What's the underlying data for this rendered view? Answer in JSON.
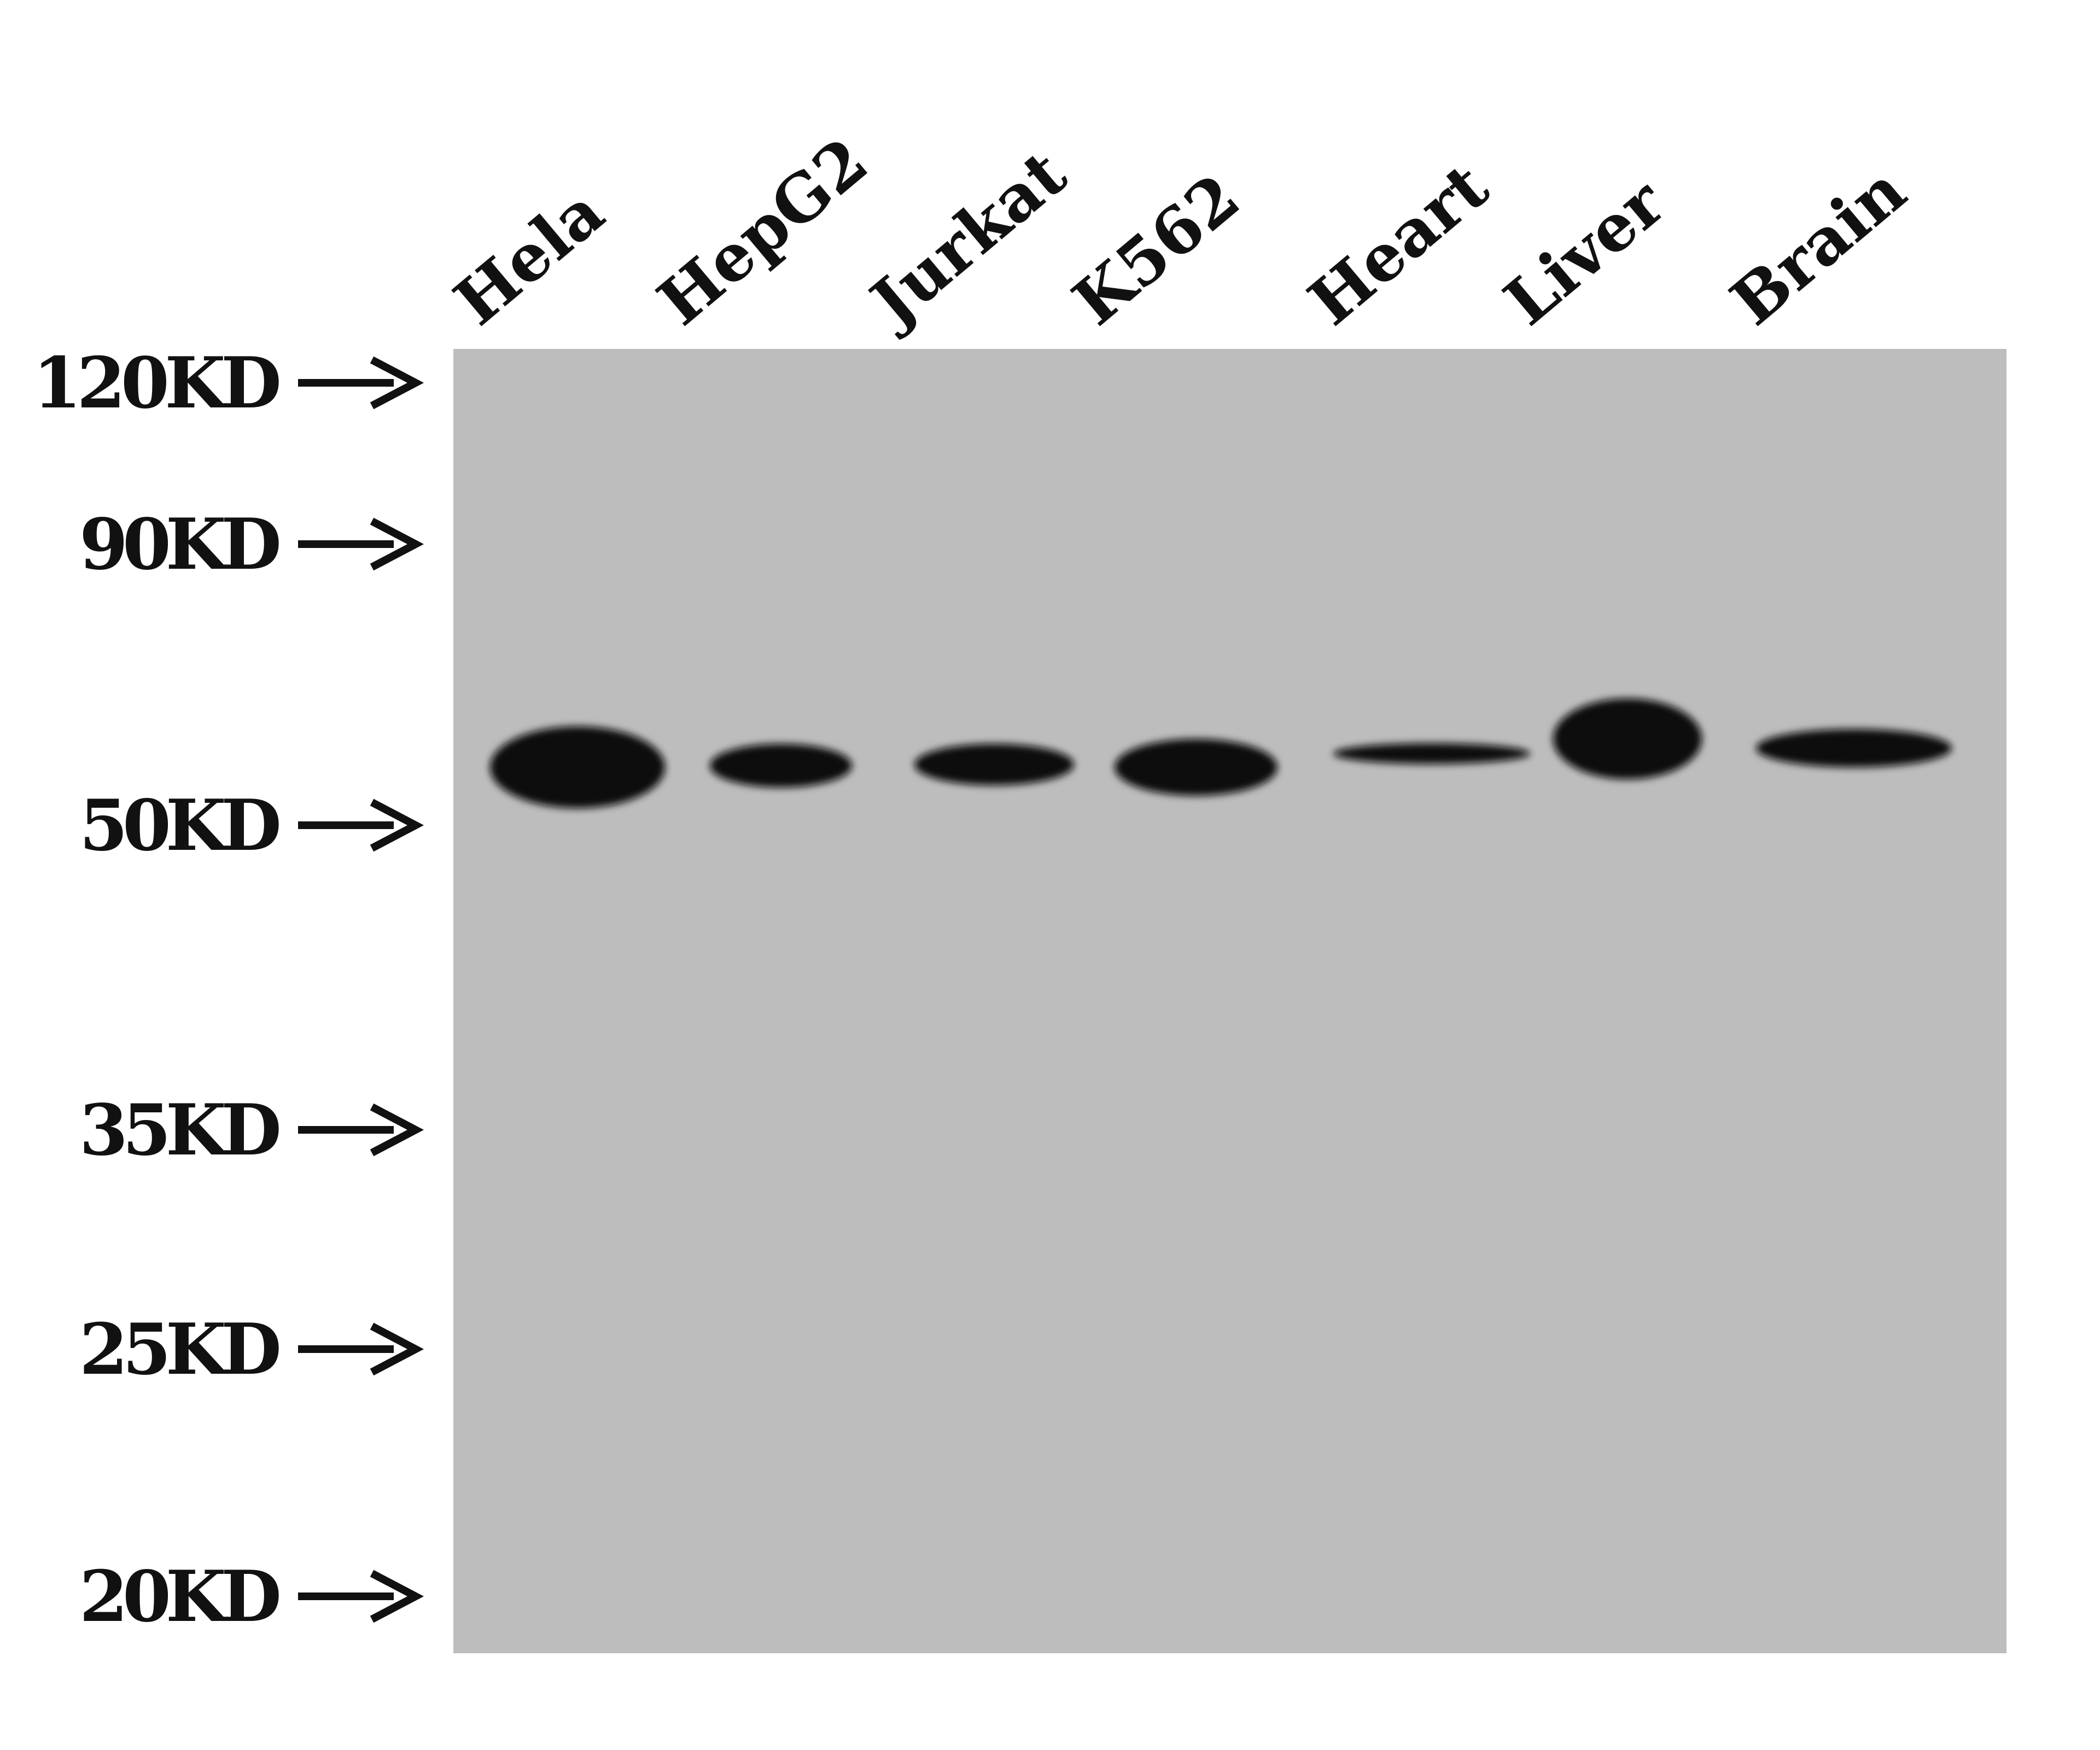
{
  "blot": {
    "background_color": "#bdbdbd",
    "band_color": "#0a0a0a",
    "lanes": [
      "Hela",
      "HepG2",
      "Jurkat",
      "K562",
      "Heart",
      "Liver",
      "Brain"
    ],
    "markers": [
      "120KD",
      "90KD",
      "50KD",
      "35KD",
      "25KD",
      "20KD"
    ],
    "marker_icon": "right-arrow-icon"
  }
}
